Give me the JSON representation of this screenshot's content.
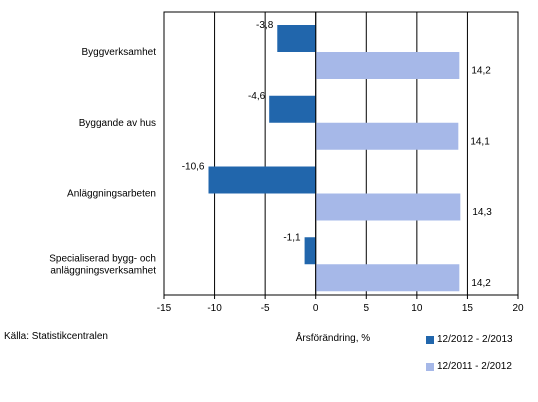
{
  "chart_data": {
    "type": "bar",
    "orientation": "horizontal",
    "categories": [
      [
        "Byggverksamhet"
      ],
      [
        "Byggande av hus"
      ],
      [
        "Anläggningsarbeten"
      ],
      [
        "Specialiserad bygg- och",
        "anläggningsverksamhet"
      ]
    ],
    "series": [
      {
        "name": "12/2012 - 2/2013",
        "color": "#2166ac",
        "values": [
          -3.8,
          -4.6,
          -10.6,
          -1.1
        ],
        "labels": [
          "-3,8",
          "-4,6",
          "-10,6",
          "-1,1"
        ]
      },
      {
        "name": "12/2011 - 2/2012",
        "color": "#a6b8e8",
        "values": [
          14.2,
          14.1,
          14.3,
          14.2
        ],
        "labels": [
          "14,2",
          "14,1",
          "14,3",
          "14,2"
        ]
      }
    ],
    "xlim": [
      -15,
      20
    ],
    "xticks": [
      -15,
      -10,
      -5,
      0,
      5,
      10,
      15,
      20
    ],
    "xtick_labels": [
      "-15",
      "-10",
      "-5",
      "0",
      "5",
      "10",
      "15",
      "20"
    ],
    "xlabel": "Årsförändring, %",
    "grid": "vertical",
    "legend_position": "bottom-right"
  },
  "source": "Källa: Statistikcentralen"
}
